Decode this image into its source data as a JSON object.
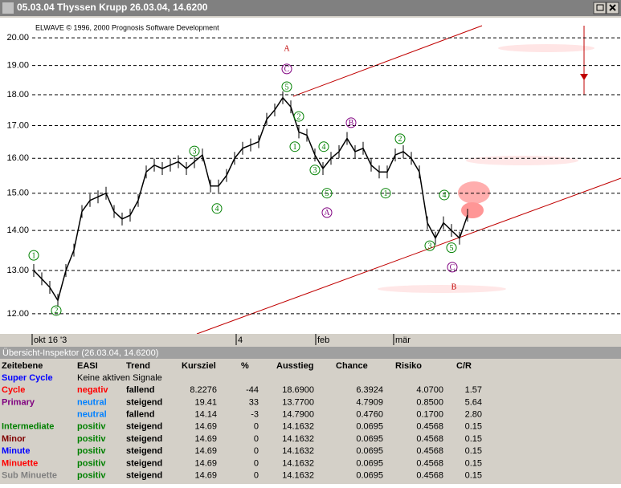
{
  "window": {
    "title": "05.03.04 Thyssen Krupp  26.03.04, 14.6200"
  },
  "chart": {
    "copyright": "ELWAVE © 1996, 2000 Prognosis Software Development",
    "log_scale": true,
    "ylim": [
      11.56,
      20.76
    ],
    "yticks": [
      {
        "value": 12,
        "label": "12.00"
      },
      {
        "value": 13,
        "label": "13.00"
      },
      {
        "value": 14,
        "label": "14.00"
      },
      {
        "value": 15,
        "label": "15.00"
      },
      {
        "value": 16,
        "label": "16.00"
      },
      {
        "value": 17,
        "label": "17.00"
      },
      {
        "value": 18,
        "label": "18.00"
      },
      {
        "value": 19,
        "label": "19.00"
      },
      {
        "value": 20,
        "label": "20.00"
      }
    ],
    "xlabels": [
      {
        "label": "okt 16 '3",
        "x": 0
      },
      {
        "label": "4",
        "x": 25.4
      },
      {
        "label": "feb",
        "x": 35.3
      },
      {
        "label": "mär",
        "x": 45
      }
    ],
    "color": "#000000",
    "closes": [
      13.0,
      12.8,
      12.6,
      12.3,
      13.0,
      13.5,
      14.5,
      14.8,
      14.9,
      15.0,
      14.5,
      14.3,
      14.4,
      14.8,
      15.6,
      15.8,
      15.7,
      15.8,
      15.9,
      15.7,
      15.9,
      16.1,
      15.2,
      15.2,
      15.5,
      16.0,
      16.3,
      16.4,
      16.5,
      17.2,
      17.5,
      17.9,
      17.6,
      16.8,
      16.7,
      16.1,
      15.7,
      16.0,
      16.2,
      16.6,
      16.2,
      16.3,
      15.8,
      15.6,
      15.6,
      16.1,
      16.2,
      16.0,
      15.6,
      14.2,
      13.8,
      14.2,
      14.0,
      13.8,
      14.4
    ],
    "waves": [
      {
        "label": "1",
        "x": 0,
        "y": 13.37,
        "color": "#008000",
        "circle": true
      },
      {
        "label": "2",
        "x": 2.8,
        "y": 12.07,
        "color": "#008000",
        "circle": true
      },
      {
        "label": "3",
        "x": 20,
        "y": 16.22,
        "color": "#008000",
        "circle": true
      },
      {
        "label": "4",
        "x": 22.8,
        "y": 14.58,
        "color": "#008000",
        "circle": true
      },
      {
        "label": "5",
        "x": 31.5,
        "y": 18.27,
        "color": "#008000",
        "circle": true
      },
      {
        "label": "C",
        "x": 31.5,
        "y": 18.88,
        "color": "#800080",
        "circle": true
      },
      {
        "label": "A",
        "x": 31.5,
        "y": 19.62,
        "color": "#c00000",
        "circle": false
      },
      {
        "label": "2",
        "x": 33,
        "y": 17.29,
        "color": "#008000",
        "circle": true
      },
      {
        "label": "1",
        "x": 32.5,
        "y": 16.35,
        "color": "#008000",
        "circle": true
      },
      {
        "label": "4",
        "x": 36.1,
        "y": 16.35,
        "color": "#008000",
        "circle": true
      },
      {
        "label": "3",
        "x": 35,
        "y": 15.66,
        "color": "#008000",
        "circle": true
      },
      {
        "label": "5",
        "x": 36.5,
        "y": 15.0,
        "color": "#008000",
        "circle": true
      },
      {
        "label": "A",
        "x": 36.5,
        "y": 14.47,
        "color": "#800080",
        "circle": true
      },
      {
        "label": "B",
        "x": 39.5,
        "y": 17.09,
        "color": "#800080",
        "circle": true
      },
      {
        "label": "1",
        "x": 43.8,
        "y": 15.0,
        "color": "#008000",
        "circle": true
      },
      {
        "label": "2",
        "x": 45.6,
        "y": 16.59,
        "color": "#008000",
        "circle": true
      },
      {
        "label": "4",
        "x": 51.1,
        "y": 14.95,
        "color": "#008000",
        "circle": true
      },
      {
        "label": "3",
        "x": 49.3,
        "y": 13.61,
        "color": "#008000",
        "circle": true
      },
      {
        "label": "5",
        "x": 52,
        "y": 13.56,
        "color": "#008000",
        "circle": true
      },
      {
        "label": "C",
        "x": 52.1,
        "y": 13.08,
        "color": "#800080",
        "circle": true
      },
      {
        "label": "B",
        "x": 52.3,
        "y": 12.62,
        "color": "#c00000",
        "circle": false
      }
    ]
  },
  "inspector": {
    "title": "Übersicht-Inspektor (26.03.04, 14.6200)",
    "headers": [
      "Zeitebene",
      "EASI",
      "Trend",
      "Kursziel",
      "%",
      "Ausstieg",
      "Chance",
      "Risiko",
      "C/R"
    ],
    "rows": [
      {
        "color": "#0000ff",
        "easi_color": "#000000",
        "cells": [
          "Super Cycle",
          "Keine aktiven Signale"
        ]
      },
      {
        "color": "#ff0000",
        "easi_color": "#ff0000",
        "cells": [
          "Cycle",
          "negativ",
          "fallend",
          "8.2276",
          "-44",
          "18.6900",
          "6.3924",
          "4.0700",
          "1.57"
        ]
      },
      {
        "color": "#800080",
        "easi_color": "#0080ff",
        "cells": [
          "Primary",
          "neutral",
          "steigend",
          "19.41",
          "33",
          "13.7700",
          "4.7909",
          "0.8500",
          "5.64"
        ]
      },
      {
        "color": "#800080",
        "easi_color": "#0080ff",
        "cells": [
          null,
          "neutral",
          "fallend",
          "14.14",
          "-3",
          "14.7900",
          "0.4760",
          "0.1700",
          "2.80"
        ]
      },
      {
        "color": "#008000",
        "easi_color": "#008000",
        "cells": [
          "Intermediate",
          "positiv",
          "steigend",
          "14.69",
          "0",
          "14.1632",
          "0.0695",
          "0.4568",
          "0.15"
        ]
      },
      {
        "color": "#800000",
        "easi_color": "#008000",
        "cells": [
          "Minor",
          "positiv",
          "steigend",
          "14.69",
          "0",
          "14.1632",
          "0.0695",
          "0.4568",
          "0.15"
        ]
      },
      {
        "color": "#0000ff",
        "easi_color": "#008000",
        "cells": [
          "Minute",
          "positiv",
          "steigend",
          "14.69",
          "0",
          "14.1632",
          "0.0695",
          "0.4568",
          "0.15"
        ]
      },
      {
        "color": "#ff0000",
        "easi_color": "#008000",
        "cells": [
          "Minuette",
          "positiv",
          "steigend",
          "14.69",
          "0",
          "14.1632",
          "0.0695",
          "0.4568",
          "0.15"
        ]
      },
      {
        "color": "#808080",
        "easi_color": "#008000",
        "cells": [
          "Sub Minuette",
          "positiv",
          "steigend",
          "14.69",
          "0",
          "14.1632",
          "0.0695",
          "0.4568",
          "0.15"
        ]
      }
    ]
  }
}
